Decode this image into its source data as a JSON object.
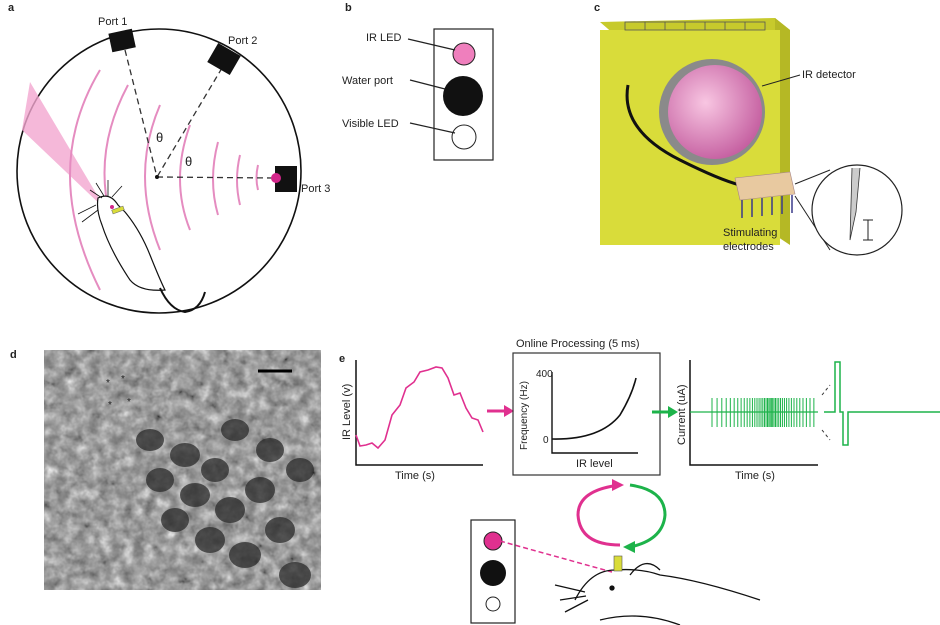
{
  "panels": {
    "a": {
      "letter": "a",
      "port1": "Port 1",
      "port2": "Port 2",
      "port3": "Port 3",
      "theta": "θ"
    },
    "b": {
      "letter": "b",
      "ir_led": "IR LED",
      "water_port": "Water port",
      "visible_led": "Visible LED"
    },
    "c": {
      "letter": "c",
      "ir_detector": "IR detector",
      "electrodes_line1": "Stimulating",
      "electrodes_line2": "electrodes"
    },
    "d": {
      "letter": "d"
    },
    "e": {
      "letter": "e",
      "plot1": {
        "ylabel": "IR Level (v)",
        "xlabel": "Time (s)"
      },
      "processing": {
        "title": "Online Processing (5 ms)",
        "ylabel": "Frequency (Hz)",
        "xlabel": "IR level",
        "ytick_top": "400",
        "ytick_bottom": "0"
      },
      "plot3": {
        "ylabel": "Current (uA)",
        "xlabel": "Time (s)"
      }
    }
  },
  "colors": {
    "pink": "#e0308f",
    "light_pink": "#f3a6cf",
    "green": "#1db34a",
    "yellow": "#d9dc3a",
    "tan": "#e8c9a0"
  }
}
